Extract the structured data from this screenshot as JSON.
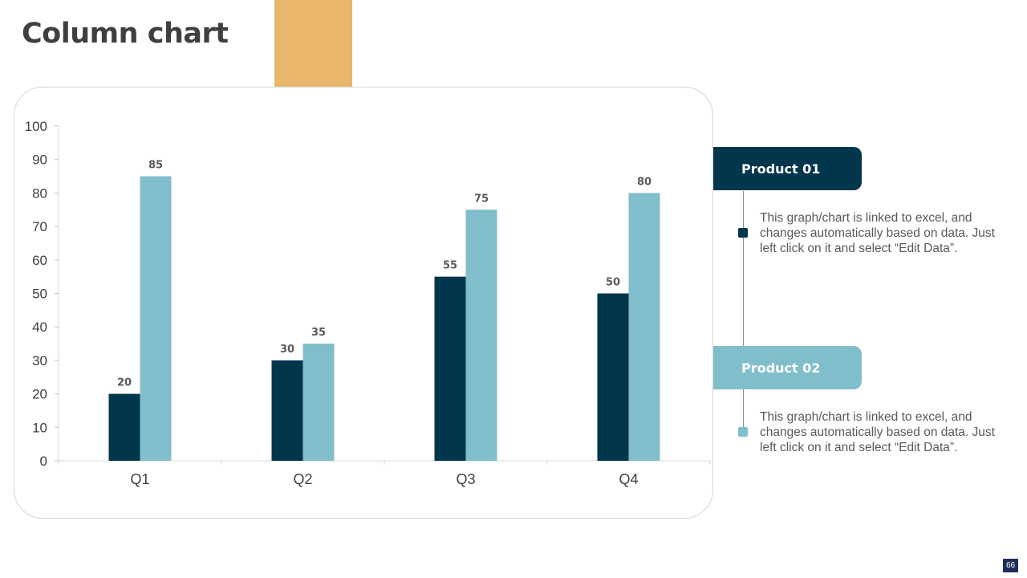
{
  "slide": {
    "title": "Column chart",
    "page_number": "66",
    "accent_color": "#E8B76B"
  },
  "colors": {
    "product_01": "#02364D",
    "product_02": "#81BECC"
  },
  "chart_data": {
    "type": "bar",
    "categories": [
      "Q1",
      "Q2",
      "Q3",
      "Q4"
    ],
    "series": [
      {
        "name": "Product 01",
        "values": [
          20,
          30,
          55,
          50
        ],
        "color": "#02364D"
      },
      {
        "name": "Product 02",
        "values": [
          85,
          35,
          75,
          80
        ],
        "color": "#81BECC"
      }
    ],
    "ylim": [
      0,
      100
    ],
    "yticks": [
      0,
      10,
      20,
      30,
      40,
      50,
      60,
      70,
      80,
      90,
      100
    ],
    "grid": false,
    "data_labels": true
  },
  "legend": {
    "product_01": {
      "label": "Product 01",
      "description": "This graph/chart is linked to excel, and changes automatically based on data. Just left click on it and select “Edit Data”."
    },
    "product_02": {
      "label": "Product 02",
      "description": "This graph/chart is linked to excel, and changes automatically based on data. Just left click on it and select “Edit Data”."
    }
  }
}
